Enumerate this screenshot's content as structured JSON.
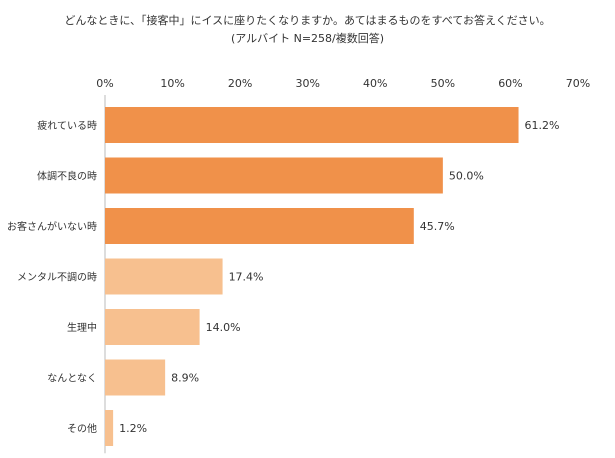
{
  "chart_data": {
    "type": "bar",
    "orientation": "horizontal",
    "title": "どんなときに、「接客中」にイスに座りたくなりますか。あてはまるものをすべてお答えください。",
    "subtitle": "(アルバイト N=258/複数回答)",
    "categories": [
      "疲れている時",
      "体調不良の時",
      "お客さんがいない時",
      "メンタル不調の時",
      "生理中",
      "なんとなく",
      "その他"
    ],
    "values": [
      61.2,
      50.0,
      45.7,
      17.4,
      14.0,
      8.9,
      1.2
    ],
    "value_labels": [
      "61.2%",
      "50.0%",
      "45.7%",
      "17.4%",
      "14.0%",
      "8.9%",
      "1.2%"
    ],
    "xlim": [
      0,
      70
    ],
    "x_ticks": [
      "0%",
      "10%",
      "20%",
      "30%",
      "40%",
      "50%",
      "60%",
      "70%"
    ],
    "grid": false,
    "colors": {
      "highlight": "#f0914a",
      "normal": "#f7c08f"
    },
    "highlight_count": 3
  }
}
